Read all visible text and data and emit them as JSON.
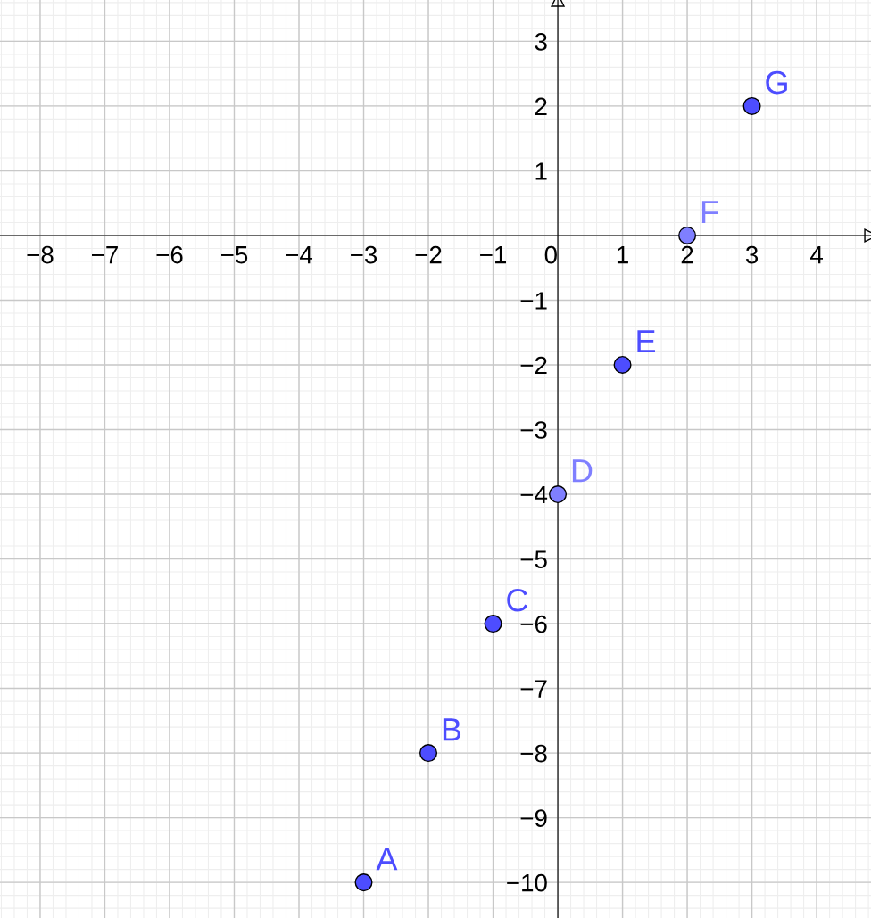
{
  "chart_data": {
    "type": "scatter",
    "x": [
      -3,
      -2,
      -1,
      0,
      1,
      2,
      3
    ],
    "values": [
      -10,
      -8,
      -6,
      -4,
      -2,
      0,
      2
    ],
    "colors": [
      "#4d4dff",
      "#4d4dff",
      "#4d4dff",
      "#7f7fff",
      "#4d4dff",
      "#7f7fff",
      "#4d4dff"
    ],
    "marker": "circle",
    "xlim": [
      -8.62,
      4.84
    ],
    "ylim": [
      -10.55,
      3.64
    ],
    "xticks": [
      {
        "value": -8,
        "label": "−8"
      },
      {
        "value": -7,
        "label": "−7"
      },
      {
        "value": -6,
        "label": "−6"
      },
      {
        "value": -5,
        "label": "−5"
      },
      {
        "value": -4,
        "label": "−4"
      },
      {
        "value": -3,
        "label": "−3"
      },
      {
        "value": -2,
        "label": "−2"
      },
      {
        "value": -1,
        "label": "−1"
      },
      0,
      1,
      2,
      3,
      4
    ],
    "yticks": [
      {
        "value": -10,
        "label": "−10"
      },
      {
        "value": -9,
        "label": "−9"
      },
      {
        "value": -8,
        "label": "−8"
      },
      {
        "value": -7,
        "label": "−7"
      },
      {
        "value": -6,
        "label": "−6"
      },
      {
        "value": -5,
        "label": "−5"
      },
      {
        "value": -4,
        "label": "−4"
      },
      {
        "value": -3,
        "label": "−3"
      },
      {
        "value": -2,
        "label": "−2"
      },
      {
        "value": -1,
        "label": "−1"
      },
      1,
      2,
      3
    ],
    "grid": true,
    "annotations": [
      {
        "text": "A",
        "x": -3,
        "y": -10
      },
      {
        "text": "B",
        "x": -2,
        "y": -8
      },
      {
        "text": "C",
        "x": -1,
        "y": -6
      },
      {
        "text": "D",
        "x": 0,
        "y": -4
      },
      {
        "text": "E",
        "x": 1,
        "y": -2
      },
      {
        "text": "F",
        "x": 2,
        "y": 0
      },
      {
        "text": "G",
        "x": 3,
        "y": 2
      }
    ]
  }
}
